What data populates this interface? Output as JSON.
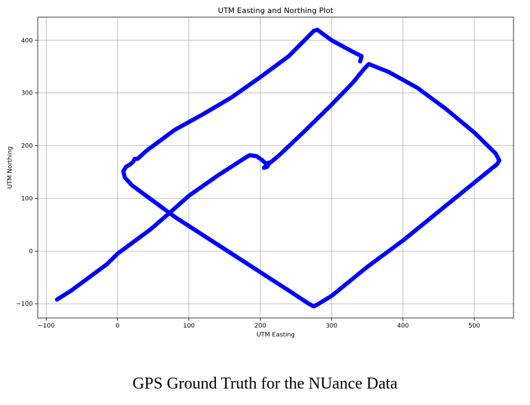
{
  "caption": "GPS Ground Truth for the NUance Data",
  "chart_data": {
    "type": "line",
    "title": "UTM Easting and Northing Plot",
    "xlabel": "UTM Easting",
    "ylabel": "UTM Northing",
    "xlim": [
      -112,
      555
    ],
    "ylim": [
      -127,
      444
    ],
    "xticks": [
      -100,
      0,
      100,
      200,
      300,
      400,
      500
    ],
    "yticks": [
      -100,
      0,
      100,
      200,
      300,
      400
    ],
    "grid": true,
    "line_color": "#0000ff",
    "series": [
      {
        "x": [
          -85,
          -65,
          -40,
          -15,
          0,
          20,
          45,
          75,
          100,
          140,
          180,
          185,
          195,
          203,
          208,
          212,
          210,
          205,
          225,
          260,
          300,
          330,
          345,
          352,
          380,
          420,
          460,
          500,
          530,
          535,
          532,
          500,
          450,
          400,
          350,
          300,
          282,
          275,
          268,
          240,
          200,
          160,
          120,
          80,
          50,
          20,
          10,
          8,
          12,
          18,
          22,
          24,
          28,
          40,
          80,
          120,
          160,
          200,
          240,
          275,
          280,
          300,
          330,
          342,
          340
        ],
        "y": [
          -92,
          -75,
          -50,
          -25,
          -5,
          15,
          40,
          75,
          105,
          143,
          178,
          182,
          180,
          172,
          166,
          168,
          160,
          158,
          180,
          225,
          278,
          320,
          345,
          355,
          340,
          310,
          270,
          225,
          185,
          172,
          165,
          130,
          75,
          20,
          -30,
          -85,
          -100,
          -105,
          -100,
          -75,
          -40,
          -5,
          30,
          65,
          95,
          125,
          140,
          152,
          160,
          165,
          170,
          175,
          175,
          190,
          230,
          260,
          292,
          330,
          370,
          418,
          420,
          400,
          378,
          370,
          360
        ]
      }
    ]
  }
}
